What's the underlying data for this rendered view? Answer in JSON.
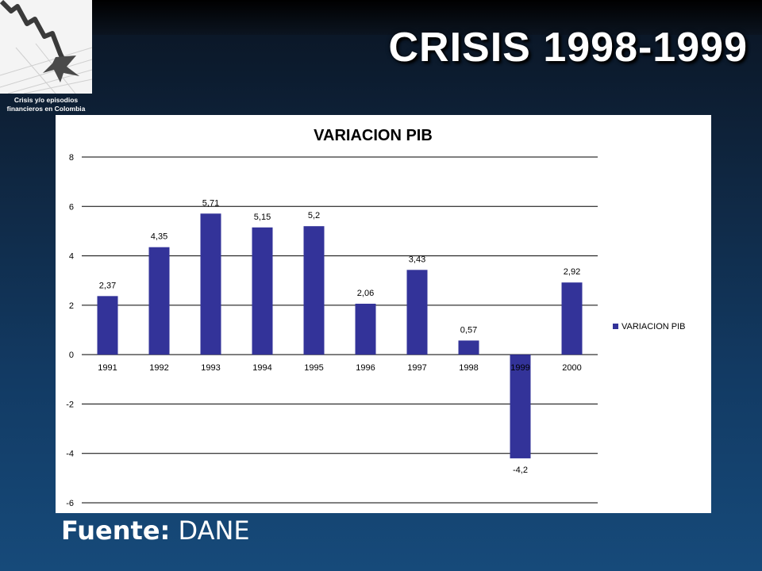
{
  "slide": {
    "title": "CRISIS 1998-1999",
    "logo_caption": "Crisis y/o episodios financieros en Colombia",
    "source_label": "Fuente:",
    "source_value": "DANE"
  },
  "colors": {
    "bar": "#333399",
    "grid": "#000000",
    "background_top": "#0a1422",
    "background_bottom": "#164a7a"
  },
  "chart_data": {
    "type": "bar",
    "title": "VARIACION PIB",
    "xlabel": "",
    "ylabel": "",
    "categories": [
      "1991",
      "1992",
      "1993",
      "1994",
      "1995",
      "1996",
      "1997",
      "1998",
      "1999",
      "2000"
    ],
    "series": [
      {
        "name": "VARIACION PIB",
        "values": [
          2.37,
          4.35,
          5.71,
          5.15,
          5.2,
          2.06,
          3.43,
          0.57,
          -4.2,
          2.92
        ],
        "labels": [
          "2,37",
          "4,35",
          "5,71",
          "5,15",
          "5,2",
          "2,06",
          "3,43",
          "0,57",
          "-4,2",
          "2,92"
        ]
      }
    ],
    "ylim": [
      -6,
      8
    ],
    "yticks": [
      8,
      6,
      4,
      2,
      0,
      -2,
      -4,
      -6
    ],
    "grid": true,
    "legend": "right"
  }
}
